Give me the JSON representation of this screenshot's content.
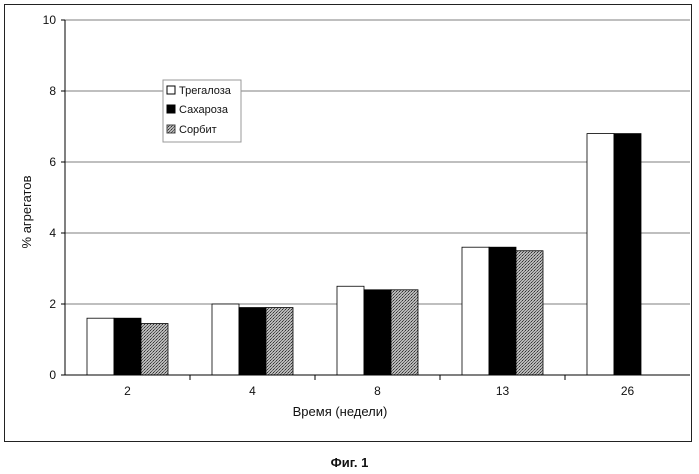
{
  "chart_data": {
    "type": "bar",
    "categories": [
      "2",
      "4",
      "8",
      "13",
      "26"
    ],
    "series": [
      {
        "name": "Трегалоза",
        "values": [
          1.6,
          2.0,
          2.5,
          3.6,
          6.8
        ],
        "color": "#ffffff",
        "pattern": "none"
      },
      {
        "name": "Сахароза",
        "values": [
          1.6,
          1.9,
          2.4,
          3.6,
          6.8
        ],
        "color": "#000000",
        "pattern": "none"
      },
      {
        "name": "Сорбит",
        "values": [
          1.45,
          1.9,
          2.4,
          3.5,
          null
        ],
        "color": "#9a9a9a",
        "pattern": "dotted-gray"
      }
    ],
    "xlabel": "Время (недели)",
    "ylabel": "% агрегатов",
    "ylim": [
      0,
      10
    ],
    "yticks": [
      "0",
      "2",
      "4",
      "6",
      "8",
      "10"
    ],
    "grid": "horizontal",
    "legend_placement": "upper-left",
    "title": ""
  },
  "caption": "Фиг. 1"
}
